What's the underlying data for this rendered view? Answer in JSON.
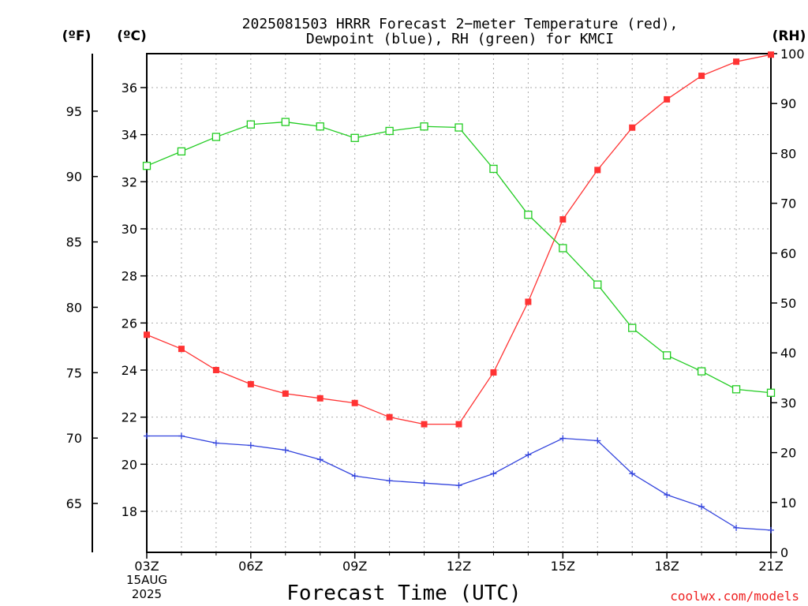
{
  "title": {
    "line1": "2025081503 HRRR Forecast 2−meter Temperature (red),",
    "line2": "Dewpoint (blue), RH (green) for KMCI"
  },
  "units": {
    "fahrenheit": "(ºF)",
    "celsius": "(ºC)",
    "rh": "(RH)"
  },
  "xlabel": "Forecast Time (UTC)",
  "date_label": {
    "day": "15AUG",
    "year": "2025"
  },
  "credit": "coolwx.com/models",
  "colors": {
    "temperature": "#ff3333",
    "dewpoint": "#3344dd",
    "rh": "#22cc22",
    "grid": "#aaaaaa"
  },
  "chart_data": {
    "type": "line",
    "x_ticks": [
      "03Z",
      "06Z",
      "09Z",
      "12Z",
      "15Z",
      "18Z",
      "21Z"
    ],
    "x": [
      "03Z",
      "04Z",
      "05Z",
      "06Z",
      "07Z",
      "08Z",
      "09Z",
      "10Z",
      "11Z",
      "12Z",
      "13Z",
      "14Z",
      "15Z",
      "16Z",
      "17Z",
      "18Z",
      "19Z",
      "20Z",
      "21Z"
    ],
    "y_left_celsius": {
      "range": [
        16.25,
        37.4
      ],
      "ticks": [
        18,
        20,
        22,
        24,
        26,
        28,
        30,
        32,
        34,
        36
      ]
    },
    "y_left_fahrenheit": {
      "ticks": [
        65,
        70,
        75,
        80,
        85,
        90,
        95
      ]
    },
    "y_right_rh": {
      "range": [
        0,
        100
      ],
      "ticks": [
        0,
        10,
        20,
        30,
        40,
        50,
        60,
        70,
        80,
        90,
        100
      ]
    },
    "grid": true,
    "series": [
      {
        "name": "Temperature",
        "axis": "celsius",
        "marker": "filled-square",
        "values": [
          25.5,
          24.9,
          24.0,
          23.4,
          23.0,
          22.8,
          22.6,
          22.0,
          21.7,
          21.7,
          23.9,
          26.9,
          30.4,
          32.5,
          34.3,
          35.5,
          36.5,
          37.1,
          37.4
        ]
      },
      {
        "name": "Dewpoint",
        "axis": "celsius",
        "marker": "plus",
        "values": [
          21.2,
          21.2,
          20.9,
          20.8,
          20.6,
          20.2,
          19.5,
          19.3,
          19.2,
          19.1,
          19.6,
          20.4,
          21.1,
          21.0,
          19.6,
          18.7,
          18.2,
          17.3,
          17.2
        ]
      },
      {
        "name": "RH",
        "axis": "rh",
        "marker": "open-square",
        "values": [
          77.5,
          80.4,
          83.3,
          85.8,
          86.3,
          85.4,
          83.1,
          84.5,
          85.4,
          85.2,
          76.9,
          67.7,
          61.0,
          53.7,
          45.0,
          39.5,
          36.3,
          32.7,
          32.0
        ]
      }
    ]
  }
}
